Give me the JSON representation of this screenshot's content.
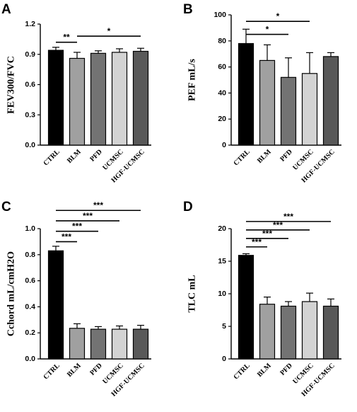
{
  "chart_data": [
    {
      "panel": "A",
      "type": "bar",
      "ylabel": "FEV300/FVC",
      "categories": [
        "CTRL",
        "BLM",
        "PFD",
        "UCMSC",
        "HGF-UCMSC"
      ],
      "values": [
        0.94,
        0.86,
        0.91,
        0.92,
        0.93
      ],
      "errors": [
        0.03,
        0.06,
        0.025,
        0.035,
        0.03
      ],
      "colors": [
        "#000000",
        "#a0a0a0",
        "#737373",
        "#d3d3d3",
        "#595959"
      ],
      "ylim": [
        0.0,
        1.2
      ],
      "yticks": [
        "0.0",
        "0.3",
        "0.6",
        "0.9",
        "1.2"
      ],
      "significance": [
        {
          "from": 0,
          "to": 1,
          "label": "**",
          "y": 1.02
        },
        {
          "from": 1,
          "to": 4,
          "label": "*",
          "y": 1.08
        }
      ]
    },
    {
      "panel": "B",
      "type": "bar",
      "ylabel": "PEF mL/s",
      "categories": [
        "CTRL",
        "BLM",
        "PFD",
        "UCMSC",
        "HGF-UCMSC"
      ],
      "values": [
        78,
        65,
        52,
        55,
        68
      ],
      "errors": [
        11,
        12,
        15,
        16,
        3
      ],
      "colors": [
        "#000000",
        "#a0a0a0",
        "#737373",
        "#d3d3d3",
        "#595959"
      ],
      "ylim": [
        0,
        100
      ],
      "yticks": [
        "0",
        "20",
        "40",
        "60",
        "80",
        "100"
      ],
      "significance": [
        {
          "from": 0,
          "to": 2,
          "label": "*",
          "y": 85
        },
        {
          "from": 0,
          "to": 3,
          "label": "*",
          "y": 95
        }
      ]
    },
    {
      "panel": "C",
      "type": "bar",
      "ylabel": "Cchord mL/cmH2O",
      "categories": [
        "CTRL",
        "BLM",
        "PFD",
        "UCMSC",
        "HGF-UCMSC"
      ],
      "values": [
        0.83,
        0.235,
        0.228,
        0.228,
        0.228
      ],
      "errors": [
        0.035,
        0.035,
        0.02,
        0.025,
        0.03
      ],
      "colors": [
        "#000000",
        "#a0a0a0",
        "#737373",
        "#d3d3d3",
        "#595959"
      ],
      "ylim": [
        0.0,
        1.0
      ],
      "yticks": [
        "0.0",
        "0.2",
        "0.4",
        "0.6",
        "0.8",
        "1.0"
      ],
      "significance": [
        {
          "from": 0,
          "to": 1,
          "label": "***",
          "y": 0.9
        },
        {
          "from": 0,
          "to": 2,
          "label": "***",
          "y": 0.98
        },
        {
          "from": 0,
          "to": 3,
          "label": "***",
          "y": 1.06
        },
        {
          "from": 0,
          "to": 4,
          "label": "***",
          "y": 1.14
        }
      ]
    },
    {
      "panel": "D",
      "type": "bar",
      "ylabel": "TLC mL",
      "categories": [
        "CTRL",
        "BLM",
        "PFD",
        "UCMSC",
        "HGF-UCMSC"
      ],
      "values": [
        15.9,
        8.4,
        8.1,
        8.8,
        8.1
      ],
      "errors": [
        0.25,
        1.1,
        0.7,
        1.3,
        1.1
      ],
      "colors": [
        "#000000",
        "#a0a0a0",
        "#737373",
        "#d3d3d3",
        "#595959"
      ],
      "ylim": [
        0,
        20
      ],
      "yticks": [
        "0",
        "5",
        "10",
        "15",
        "20"
      ],
      "significance": [
        {
          "from": 0,
          "to": 1,
          "label": "***",
          "y": 17.2
        },
        {
          "from": 0,
          "to": 2,
          "label": "***",
          "y": 18.5
        },
        {
          "from": 0,
          "to": 3,
          "label": "***",
          "y": 19.8
        },
        {
          "from": 0,
          "to": 4,
          "label": "***",
          "y": 21.1
        }
      ]
    }
  ]
}
